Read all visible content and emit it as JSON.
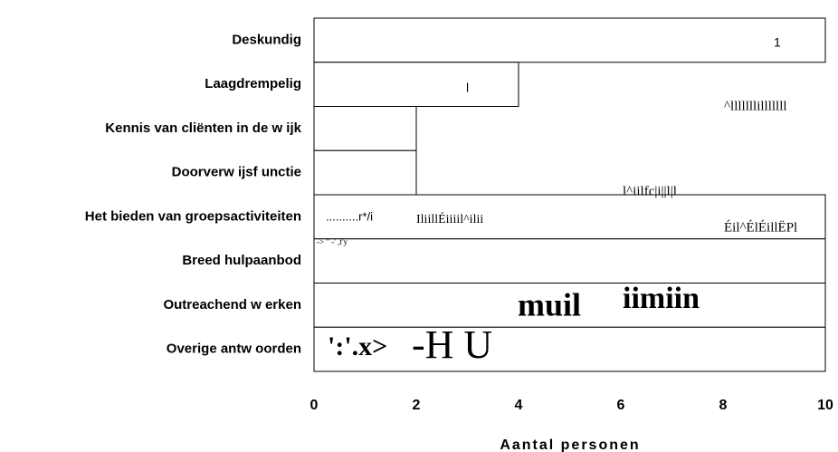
{
  "chart_data": {
    "type": "bar",
    "orientation": "horizontal",
    "xlabel": "Aantal personen",
    "categories": [
      "Deskundig",
      "Laagdrempelig",
      "Kennis van cliënten in de w ijk",
      "Doorverw ijsf unctie",
      "Het bieden van groepsactiviteiten",
      "Breed hulpaanbod",
      "Outreachend w erken",
      "Overige antw oorden"
    ],
    "values": [
      10,
      4,
      2,
      2,
      10,
      10,
      10,
      10
    ],
    "color": "#ffffff",
    "xlim": [
      0,
      10
    ],
    "xticks": [
      0,
      2,
      4,
      6,
      8,
      10
    ],
    "grid": true,
    "annotations": [
      "1",
      "l",
      "^lllllllilllllll",
      "l^iilfc|i||l|l",
      "Éil^ÉlÉillËPl",
      "..........r*/i",
      "->  \"      -'  ,t'y",
      "IliillÉiiiil^ilii",
      "muil",
      "iimiin",
      "':'.x>",
      "-H U"
    ]
  }
}
